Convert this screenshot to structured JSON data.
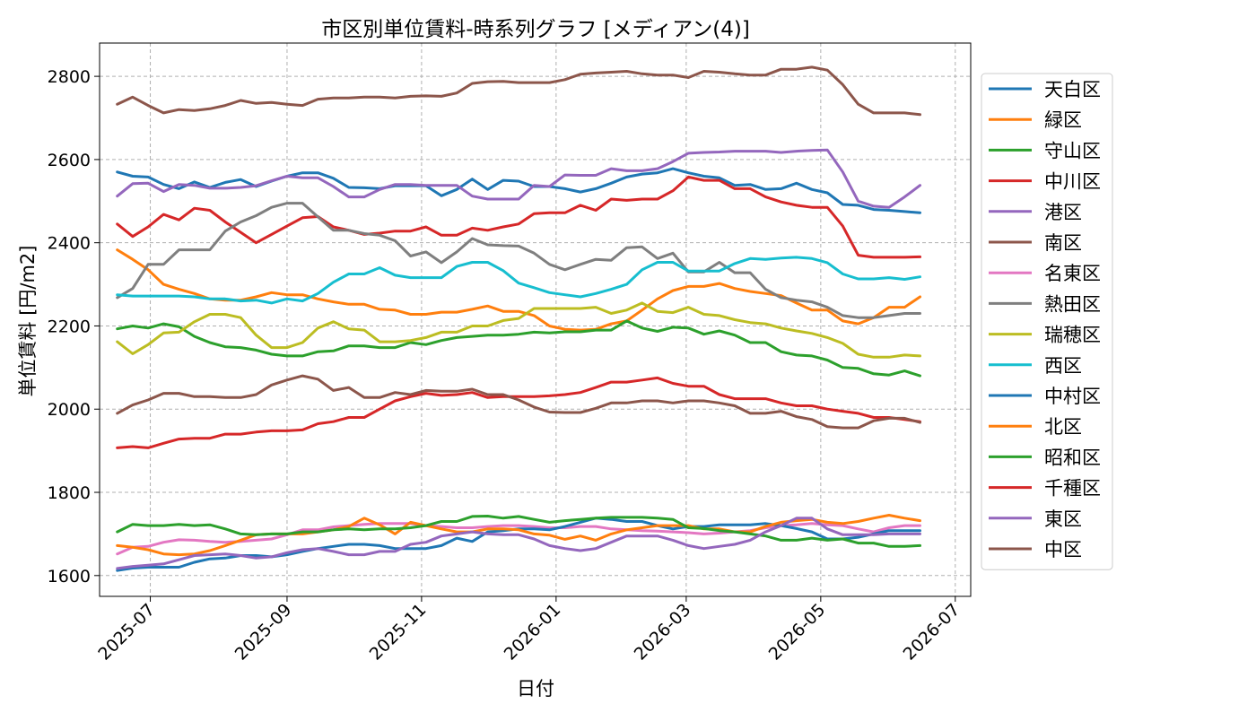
{
  "chart_data": {
    "type": "line",
    "title": "市区別単位賃料-時系列グラフ [メディアン(4)]",
    "xlabel": "日付",
    "ylabel": "単位賃料 [円/m2]",
    "ylim": [
      1550,
      2880
    ],
    "xlim": [
      "2025-06-08",
      "2026-07-08"
    ],
    "yticks": [
      1600,
      1800,
      2000,
      2200,
      2400,
      2600,
      2800
    ],
    "xticks": [
      "2025-07",
      "2025-09",
      "2025-11",
      "2026-01",
      "2026-03",
      "2026-05",
      "2026-07"
    ],
    "grid": true,
    "legend_position": "right",
    "dates": [
      "2025-06-16",
      "2025-06-23",
      "2025-06-30",
      "2025-07-07",
      "2025-07-14",
      "2025-07-21",
      "2025-07-28",
      "2025-08-04",
      "2025-08-11",
      "2025-08-18",
      "2025-08-25",
      "2025-09-01",
      "2025-09-08",
      "2025-09-15",
      "2025-09-22",
      "2025-09-29",
      "2025-10-06",
      "2025-10-13",
      "2025-10-20",
      "2025-10-27",
      "2025-11-03",
      "2025-11-10",
      "2025-11-17",
      "2025-11-24",
      "2025-12-01",
      "2025-12-08",
      "2025-12-15",
      "2025-12-22",
      "2025-12-29",
      "2026-01-05",
      "2026-01-12",
      "2026-01-19",
      "2026-01-26",
      "2026-02-02",
      "2026-02-09",
      "2026-02-16",
      "2026-02-23",
      "2026-03-02",
      "2026-03-09",
      "2026-03-16",
      "2026-03-23",
      "2026-03-30",
      "2026-04-06",
      "2026-04-13",
      "2026-04-20",
      "2026-04-27",
      "2026-05-04",
      "2026-05-11",
      "2026-05-18",
      "2026-05-25",
      "2026-06-01",
      "2026-06-08",
      "2026-06-15"
    ],
    "series": [
      {
        "name": "天白区",
        "color": "#1f77b4",
        "values": [
          2570,
          2560,
          2558,
          2540,
          2530,
          2546,
          2533,
          2545,
          2552,
          2535,
          2548,
          2560,
          2568,
          2568,
          2555,
          2533,
          2532,
          2530,
          2537,
          2537,
          2537,
          2513,
          2528,
          2553,
          2528,
          2550,
          2548,
          2535,
          2535,
          2530,
          2522,
          2530,
          2543,
          2558,
          2565,
          2568,
          2578,
          2568,
          2560,
          2556,
          2538,
          2540,
          2528,
          2530,
          2543,
          2528,
          2520,
          2492,
          2490,
          2480,
          2478,
          2475,
          2472
        ]
      },
      {
        "name": "緑区",
        "color": "#ff7f0e",
        "values": [
          2383,
          2360,
          2335,
          2300,
          2288,
          2278,
          2265,
          2262,
          2262,
          2270,
          2280,
          2275,
          2275,
          2265,
          2258,
          2252,
          2252,
          2240,
          2238,
          2228,
          2228,
          2233,
          2233,
          2240,
          2248,
          2235,
          2235,
          2225,
          2200,
          2192,
          2190,
          2192,
          2205,
          2212,
          2238,
          2265,
          2285,
          2295,
          2295,
          2302,
          2290,
          2283,
          2278,
          2273,
          2255,
          2238,
          2238,
          2212,
          2205,
          2220,
          2245,
          2245,
          2270
        ]
      },
      {
        "name": "守山区",
        "color": "#2ca02c",
        "values": [
          2193,
          2200,
          2195,
          2205,
          2198,
          2175,
          2160,
          2150,
          2148,
          2142,
          2132,
          2128,
          2128,
          2138,
          2140,
          2152,
          2152,
          2148,
          2148,
          2160,
          2155,
          2165,
          2172,
          2175,
          2178,
          2178,
          2180,
          2185,
          2183,
          2186,
          2186,
          2190,
          2190,
          2212,
          2195,
          2187,
          2197,
          2195,
          2180,
          2188,
          2178,
          2160,
          2160,
          2138,
          2130,
          2128,
          2118,
          2100,
          2098,
          2085,
          2082,
          2092,
          2080
        ]
      },
      {
        "name": "中川区",
        "color": "#d62728",
        "values": [
          2445,
          2415,
          2438,
          2468,
          2455,
          2483,
          2478,
          2450,
          2425,
          2400,
          2420,
          2440,
          2460,
          2463,
          2438,
          2430,
          2420,
          2423,
          2428,
          2428,
          2438,
          2418,
          2418,
          2435,
          2430,
          2438,
          2445,
          2470,
          2472,
          2472,
          2490,
          2478,
          2505,
          2502,
          2505,
          2505,
          2525,
          2558,
          2550,
          2550,
          2530,
          2530,
          2510,
          2498,
          2490,
          2485,
          2485,
          2440,
          2370,
          2365,
          2365,
          2365,
          2366
        ]
      },
      {
        "name": "港区",
        "color": "#9467bd",
        "values": [
          2512,
          2542,
          2543,
          2523,
          2540,
          2538,
          2531,
          2531,
          2533,
          2537,
          2549,
          2560,
          2556,
          2556,
          2535,
          2510,
          2510,
          2528,
          2540,
          2540,
          2538,
          2538,
          2538,
          2512,
          2505,
          2505,
          2505,
          2538,
          2535,
          2563,
          2562,
          2562,
          2578,
          2573,
          2573,
          2578,
          2595,
          2615,
          2617,
          2618,
          2620,
          2620,
          2620,
          2617,
          2620,
          2622,
          2623,
          2570,
          2500,
          2488,
          2485,
          2510,
          2538
        ]
      },
      {
        "name": "南区",
        "color": "#8c564b",
        "values": [
          2733,
          2750,
          2730,
          2712,
          2720,
          2718,
          2722,
          2730,
          2742,
          2735,
          2737,
          2733,
          2730,
          2745,
          2748,
          2748,
          2750,
          2750,
          2748,
          2752,
          2753,
          2752,
          2760,
          2783,
          2787,
          2788,
          2785,
          2785,
          2785,
          2792,
          2805,
          2808,
          2810,
          2812,
          2806,
          2803,
          2803,
          2797,
          2812,
          2810,
          2806,
          2803,
          2803,
          2817,
          2817,
          2822,
          2815,
          2780,
          2733,
          2712,
          2712,
          2712,
          2708
        ]
      },
      {
        "name": "名東区",
        "color": "#e377c2",
        "values": [
          1652,
          1668,
          1670,
          1680,
          1686,
          1685,
          1682,
          1680,
          1682,
          1685,
          1688,
          1698,
          1710,
          1710,
          1717,
          1720,
          1723,
          1725,
          1725,
          1725,
          1720,
          1718,
          1715,
          1715,
          1718,
          1720,
          1720,
          1718,
          1715,
          1715,
          1718,
          1718,
          1712,
          1710,
          1708,
          1707,
          1705,
          1703,
          1700,
          1702,
          1705,
          1708,
          1715,
          1720,
          1722,
          1725,
          1722,
          1720,
          1712,
          1705,
          1715,
          1720,
          1720
        ]
      },
      {
        "name": "熱田区",
        "color": "#7f7f7f",
        "values": [
          2268,
          2290,
          2348,
          2348,
          2383,
          2383,
          2383,
          2428,
          2450,
          2465,
          2485,
          2495,
          2495,
          2462,
          2430,
          2430,
          2422,
          2418,
          2405,
          2368,
          2378,
          2352,
          2378,
          2410,
          2395,
          2393,
          2392,
          2375,
          2348,
          2335,
          2348,
          2360,
          2358,
          2388,
          2390,
          2362,
          2375,
          2330,
          2330,
          2353,
          2328,
          2328,
          2288,
          2268,
          2262,
          2258,
          2245,
          2225,
          2220,
          2220,
          2225,
          2230,
          2230
        ]
      },
      {
        "name": "瑞穂区",
        "color": "#bcbd22",
        "values": [
          2162,
          2133,
          2155,
          2183,
          2185,
          2210,
          2228,
          2228,
          2220,
          2178,
          2148,
          2148,
          2160,
          2195,
          2210,
          2193,
          2190,
          2162,
          2162,
          2165,
          2172,
          2185,
          2185,
          2200,
          2200,
          2213,
          2218,
          2242,
          2242,
          2242,
          2242,
          2245,
          2230,
          2238,
          2255,
          2235,
          2232,
          2245,
          2228,
          2225,
          2215,
          2208,
          2205,
          2195,
          2188,
          2182,
          2172,
          2158,
          2132,
          2125,
          2125,
          2130,
          2128
        ]
      },
      {
        "name": "西区",
        "color": "#17becf",
        "values": [
          2275,
          2272,
          2272,
          2272,
          2272,
          2270,
          2265,
          2265,
          2260,
          2262,
          2255,
          2265,
          2260,
          2278,
          2305,
          2325,
          2325,
          2340,
          2322,
          2316,
          2316,
          2316,
          2343,
          2353,
          2353,
          2333,
          2303,
          2292,
          2280,
          2275,
          2270,
          2278,
          2288,
          2300,
          2335,
          2353,
          2353,
          2332,
          2332,
          2332,
          2350,
          2362,
          2360,
          2363,
          2365,
          2362,
          2352,
          2325,
          2313,
          2313,
          2316,
          2312,
          2318
        ]
      },
      {
        "name": "中村区",
        "color": "#1f77b4",
        "values": [
          1612,
          1618,
          1620,
          1620,
          1620,
          1632,
          1640,
          1642,
          1648,
          1648,
          1645,
          1650,
          1658,
          1665,
          1670,
          1675,
          1675,
          1672,
          1665,
          1665,
          1665,
          1672,
          1690,
          1682,
          1705,
          1708,
          1712,
          1712,
          1710,
          1718,
          1728,
          1738,
          1735,
          1730,
          1730,
          1720,
          1712,
          1718,
          1718,
          1722,
          1722,
          1722,
          1725,
          1720,
          1713,
          1705,
          1688,
          1688,
          1692,
          1700,
          1708,
          1708,
          1708
        ]
      },
      {
        "name": "北区",
        "color": "#ff7f0e",
        "values": [
          1672,
          1668,
          1662,
          1652,
          1650,
          1652,
          1660,
          1672,
          1685,
          1698,
          1700,
          1700,
          1700,
          1705,
          1710,
          1718,
          1738,
          1722,
          1700,
          1728,
          1720,
          1712,
          1705,
          1705,
          1712,
          1712,
          1710,
          1700,
          1697,
          1687,
          1695,
          1685,
          1700,
          1710,
          1715,
          1720,
          1720,
          1720,
          1712,
          1712,
          1705,
          1705,
          1718,
          1728,
          1732,
          1735,
          1728,
          1725,
          1730,
          1738,
          1745,
          1738,
          1732
        ]
      },
      {
        "name": "昭和区",
        "color": "#2ca02c",
        "values": [
          1705,
          1723,
          1720,
          1720,
          1723,
          1720,
          1722,
          1712,
          1700,
          1698,
          1700,
          1700,
          1705,
          1705,
          1710,
          1712,
          1710,
          1712,
          1712,
          1715,
          1720,
          1730,
          1730,
          1742,
          1743,
          1738,
          1742,
          1735,
          1728,
          1732,
          1735,
          1738,
          1740,
          1740,
          1740,
          1738,
          1735,
          1715,
          1713,
          1708,
          1705,
          1700,
          1695,
          1685,
          1685,
          1690,
          1685,
          1688,
          1678,
          1678,
          1670,
          1670,
          1672
        ]
      },
      {
        "name": "千種区",
        "color": "#d62728",
        "values": [
          1907,
          1910,
          1907,
          1918,
          1928,
          1930,
          1930,
          1940,
          1940,
          1945,
          1948,
          1948,
          1950,
          1965,
          1970,
          1980,
          1980,
          2000,
          2020,
          2030,
          2038,
          2033,
          2035,
          2040,
          2028,
          2030,
          2030,
          2030,
          2032,
          2035,
          2040,
          2052,
          2065,
          2065,
          2070,
          2075,
          2062,
          2055,
          2055,
          2035,
          2025,
          2025,
          2025,
          2015,
          2008,
          2008,
          2000,
          1995,
          1990,
          1980,
          1980,
          1975,
          1970
        ]
      },
      {
        "name": "東区",
        "color": "#9467bd",
        "values": [
          1617,
          1622,
          1625,
          1628,
          1638,
          1648,
          1650,
          1652,
          1648,
          1642,
          1645,
          1655,
          1662,
          1665,
          1658,
          1650,
          1650,
          1658,
          1658,
          1675,
          1680,
          1695,
          1700,
          1705,
          1700,
          1698,
          1698,
          1688,
          1672,
          1665,
          1660,
          1665,
          1680,
          1695,
          1695,
          1695,
          1685,
          1672,
          1665,
          1670,
          1675,
          1685,
          1705,
          1720,
          1738,
          1738,
          1712,
          1698,
          1698,
          1698,
          1700,
          1700,
          1700
        ]
      },
      {
        "name": "中区",
        "color": "#8c564b",
        "values": [
          1990,
          2010,
          2022,
          2038,
          2038,
          2030,
          2030,
          2028,
          2028,
          2035,
          2058,
          2070,
          2080,
          2072,
          2045,
          2052,
          2028,
          2028,
          2040,
          2035,
          2045,
          2043,
          2043,
          2048,
          2035,
          2035,
          2022,
          2005,
          1993,
          1992,
          1992,
          2002,
          2015,
          2015,
          2020,
          2020,
          2015,
          2020,
          2020,
          2015,
          2008,
          1990,
          1990,
          1995,
          1982,
          1975,
          1958,
          1955,
          1955,
          1972,
          1978,
          1978,
          1968
        ]
      }
    ]
  }
}
